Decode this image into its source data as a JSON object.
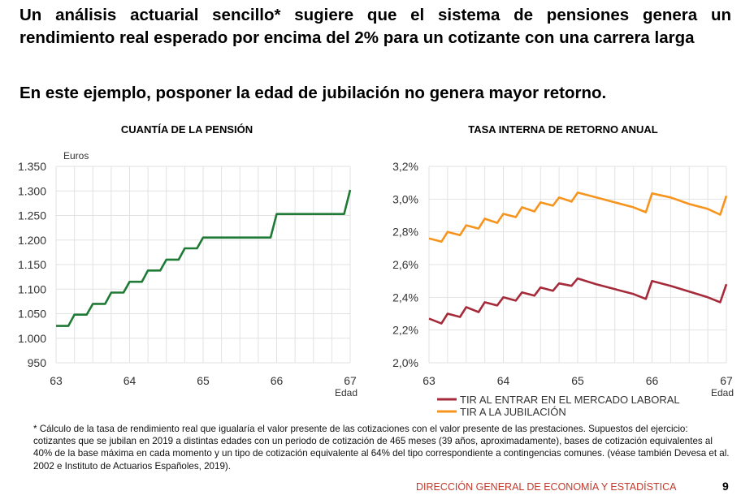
{
  "header": {
    "title": "Un análisis actuarial sencillo* sugiere que el sistema de pensiones genera un rendimiento real esperado por encima del 2% para un cotizante con una carrera larga",
    "subtitle": "En este ejemplo, posponer la edad de jubilación no genera mayor retorno."
  },
  "chart_data": [
    {
      "type": "line",
      "title": "CUANTÍA DE LA PENSIÓN",
      "ylabel": "Euros",
      "xlabel": "Edad",
      "xlim": [
        63,
        67
      ],
      "ylim": [
        950,
        1350
      ],
      "x_ticks": [
        "63",
        "64",
        "65",
        "66",
        "67"
      ],
      "y_ticks": [
        "950",
        "1.000",
        "1.050",
        "1.100",
        "1.150",
        "1.200",
        "1.250",
        "1.300",
        "1.350"
      ],
      "grid": true,
      "series": [
        {
          "color": "#1e7a34",
          "x": [
            63,
            63.167,
            63.25,
            63.417,
            63.5,
            63.667,
            63.75,
            63.917,
            64,
            64.167,
            64.25,
            64.417,
            64.5,
            64.667,
            64.75,
            64.917,
            65,
            65.917,
            66,
            66.917,
            67
          ],
          "y": [
            1025,
            1025,
            1048,
            1048,
            1070,
            1070,
            1093,
            1093,
            1115,
            1115,
            1138,
            1138,
            1160,
            1160,
            1183,
            1183,
            1205,
            1205,
            1253,
            1253,
            1302
          ]
        }
      ]
    },
    {
      "type": "line",
      "title": "TASA INTERNA DE RETORNO ANUAL",
      "xlabel": "Edad",
      "xlim": [
        63,
        67
      ],
      "ylim": [
        2.0,
        3.2
      ],
      "x_ticks": [
        "63",
        "64",
        "65",
        "66",
        "67"
      ],
      "y_ticks": [
        "2,0%",
        "2,2%",
        "2,4%",
        "2,6%",
        "2,8%",
        "3,0%",
        "3,2%"
      ],
      "grid": true,
      "legend": "bottom",
      "series": [
        {
          "name": "TIR AL ENTRAR EN EL MERCADO LABORAL",
          "color": "#a52a3a",
          "x": [
            63,
            63.167,
            63.25,
            63.417,
            63.5,
            63.667,
            63.75,
            63.917,
            64,
            64.167,
            64.25,
            64.417,
            64.5,
            64.667,
            64.75,
            64.917,
            65,
            65.25,
            65.5,
            65.75,
            65.917,
            66,
            66.25,
            66.5,
            66.75,
            66.917,
            67
          ],
          "y": [
            2.27,
            2.24,
            2.3,
            2.28,
            2.34,
            2.31,
            2.37,
            2.35,
            2.4,
            2.38,
            2.43,
            2.41,
            2.46,
            2.44,
            2.485,
            2.47,
            2.515,
            2.48,
            2.45,
            2.42,
            2.39,
            2.5,
            2.47,
            2.435,
            2.4,
            2.37,
            2.48
          ]
        },
        {
          "name": "TIR A LA JUBILACIÓN",
          "color": "#f7941d",
          "x": [
            63,
            63.167,
            63.25,
            63.417,
            63.5,
            63.667,
            63.75,
            63.917,
            64,
            64.167,
            64.25,
            64.417,
            64.5,
            64.667,
            64.75,
            64.917,
            65,
            65.25,
            65.5,
            65.75,
            65.917,
            66,
            66.25,
            66.5,
            66.75,
            66.917,
            67
          ],
          "y": [
            2.76,
            2.74,
            2.8,
            2.78,
            2.84,
            2.82,
            2.88,
            2.855,
            2.91,
            2.89,
            2.95,
            2.925,
            2.98,
            2.96,
            3.01,
            2.985,
            3.04,
            3.01,
            2.98,
            2.95,
            2.92,
            3.035,
            3.01,
            2.97,
            2.94,
            2.905,
            3.02
          ]
        }
      ]
    }
  ],
  "footer": {
    "note": "* Cálculo de la tasa de rendimiento real que igualaría el valor presente de las cotizaciones con el valor presente de las prestaciones. Supuestos del ejercicio: cotizantes que se jubilan en 2019 a distintas edades con un periodo de cotización de 465 meses (39 años, aproximadamente), bases de cotización equivalentes al 40% de la base máxima en cada momento y un tipo de cotización equivalente al 64% del tipo correspondiente a contingencias comunes. (véase también Devesa et al. 2002 e Instituto de Actuarios Españoles, 2019).",
    "source": "DIRECCIÓN GENERAL DE ECONOMÍA Y ESTADÍSTICA",
    "page_number": "9"
  }
}
